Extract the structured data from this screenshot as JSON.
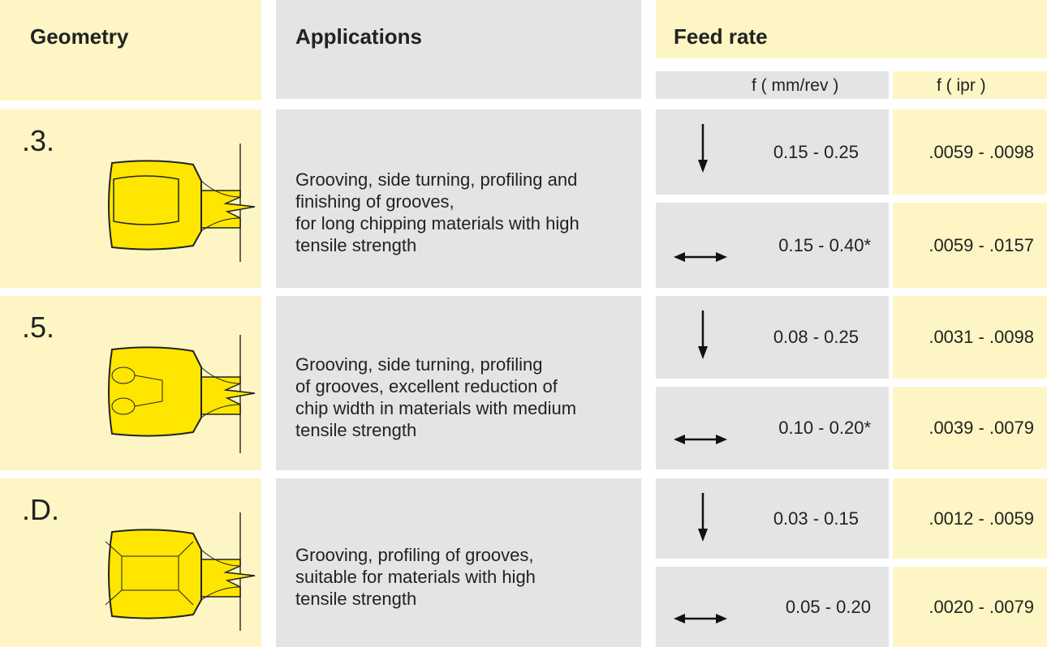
{
  "header": {
    "geometry": "Geometry",
    "applications": "Applications",
    "feed_rate": "Feed rate",
    "unit_metric": "f  ( mm/rev )",
    "unit_imperial": "f ( ipr )"
  },
  "rows": [
    {
      "geometry": ".3.",
      "application": [
        "Grooving, side turning, profiling and",
        "finishing of grooves,",
        "for long chipping materials with high",
        "tensile strength"
      ],
      "feeds": [
        {
          "metric": "0.15 - 0.25",
          "imperial": ".0059 - .0098"
        },
        {
          "metric": "0.15 - 0.40*",
          "imperial": ".0059 - .0157"
        }
      ]
    },
    {
      "geometry": ".5.",
      "application": [
        "Grooving, side turning, profiling",
        "of grooves, excellent reduction of",
        "chip width in materials with medium",
        "tensile strength"
      ],
      "feeds": [
        {
          "metric": "0.08 - 0.25",
          "imperial": ".0031 - .0098"
        },
        {
          "metric": "0.10 - 0.20*",
          "imperial": ".0039 - .0079"
        }
      ]
    },
    {
      "geometry": ".D.",
      "application": [
        "Grooving, profiling of grooves,",
        "suitable for materials with high",
        "tensile strength"
      ],
      "feeds": [
        {
          "metric": "0.03 - 0.15",
          "imperial": ".0012 - .0059"
        },
        {
          "metric": "0.05 - 0.20",
          "imperial": ".0020 - .0079"
        }
      ]
    }
  ]
}
